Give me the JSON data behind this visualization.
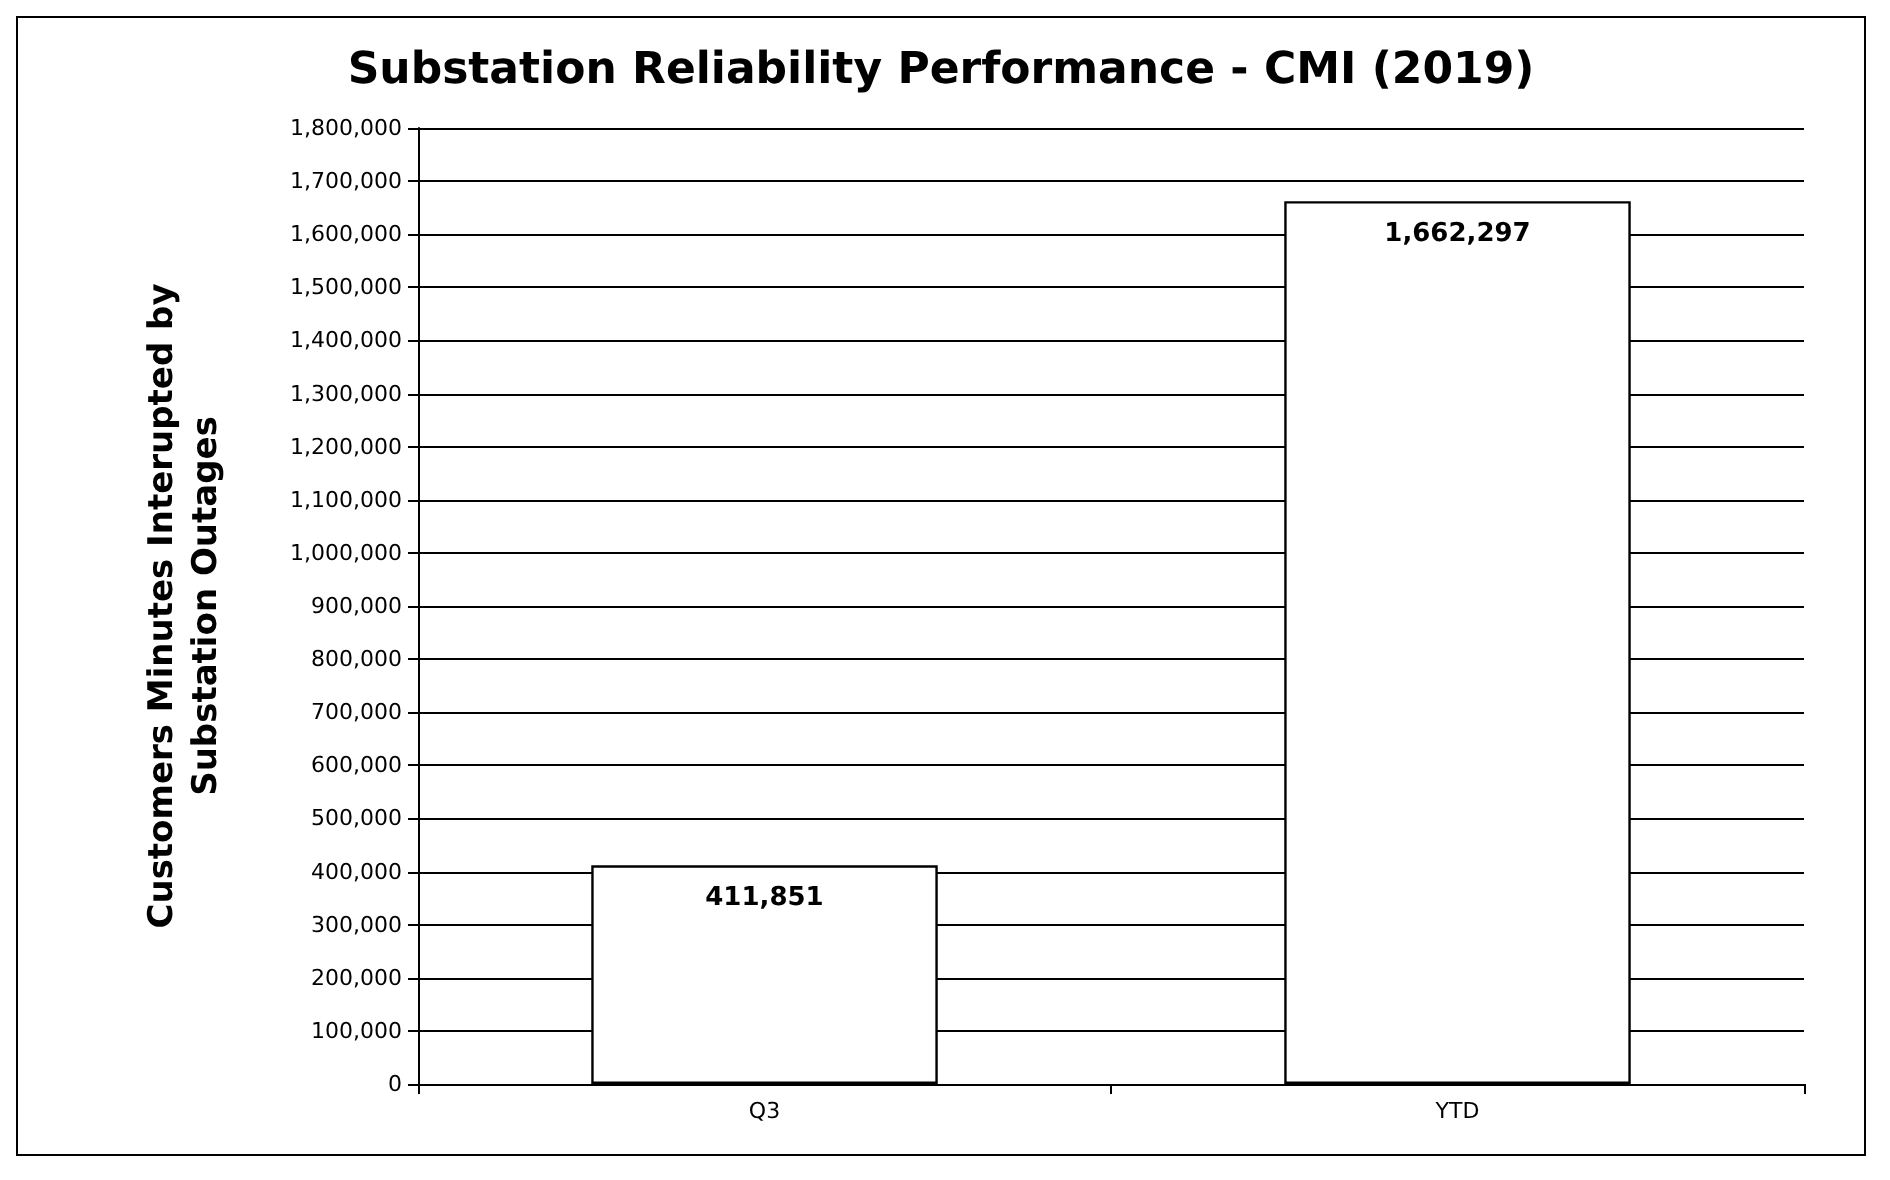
{
  "chart_data": {
    "type": "bar",
    "title": "Substation Reliability Performance - CMI (2019)",
    "ylabel": "Customers Minutes Interupted by\nSubstation Outages",
    "categories": [
      "Q3",
      "YTD"
    ],
    "values": [
      411851,
      1662297
    ],
    "color": "#ffffff",
    "value_labels": [
      "411,851",
      "1,662,297"
    ],
    "ylim": [
      0,
      1800000
    ],
    "yticks": [
      {
        "value": 0,
        "label": "0"
      },
      {
        "value": 100000,
        "label": "100,000"
      },
      {
        "value": 200000,
        "label": "200,000"
      },
      {
        "value": 300000,
        "label": "300,000"
      },
      {
        "value": 400000,
        "label": "400,000"
      },
      {
        "value": 500000,
        "label": "500,000"
      },
      {
        "value": 600000,
        "label": "600,000"
      },
      {
        "value": 700000,
        "label": "700,000"
      },
      {
        "value": 800000,
        "label": "800,000"
      },
      {
        "value": 900000,
        "label": "900,000"
      },
      {
        "value": 1000000,
        "label": "1,000,000"
      },
      {
        "value": 1100000,
        "label": "1,100,000"
      },
      {
        "value": 1200000,
        "label": "1,200,000"
      },
      {
        "value": 1300000,
        "label": "1,300,000"
      },
      {
        "value": 1400000,
        "label": "1,400,000"
      },
      {
        "value": 1500000,
        "label": "1,500,000"
      },
      {
        "value": 1600000,
        "label": "1,600,000"
      },
      {
        "value": 1700000,
        "label": "1,700,000"
      },
      {
        "value": 1800000,
        "label": "1,800,000"
      }
    ],
    "grid": "y"
  }
}
